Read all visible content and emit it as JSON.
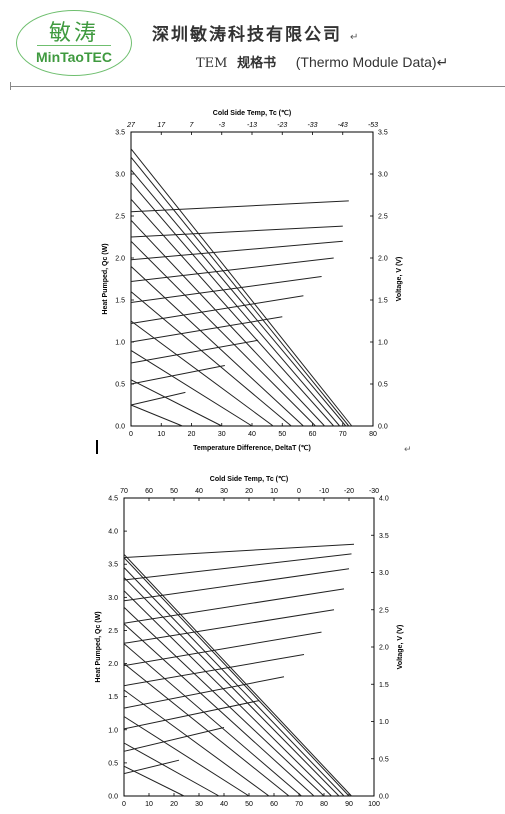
{
  "header": {
    "logo_cn": "敏涛",
    "logo_en": "MinTaoTEC",
    "company_name": "深圳敏涛科技有限公司",
    "paragraph_mark": "↵",
    "spec_tem": "TEM",
    "spec_cn": "规格书",
    "spec_en": "(Thermo Module Data)↵",
    "logo_color": "#3f9a3f"
  },
  "chart_data": [
    {
      "type": "line",
      "title": "",
      "top_axis_label": "Cold Side Temp, Tc (℃)",
      "top_ticks": [
        "27",
        "17",
        "7",
        "-3",
        "-13",
        "-23",
        "-33",
        "-43",
        "-53"
      ],
      "xlabel": "Temperature Difference, DeltaT (℃)",
      "ylabel_left": "Heat Pumped, Qc (W)",
      "ylabel_right": "Voltage, V (V)",
      "xlim": [
        0,
        80
      ],
      "ylim": [
        0,
        3.5
      ],
      "y2lim": [
        0,
        3.5
      ],
      "x_ticks": [
        0,
        10,
        20,
        30,
        40,
        50,
        60,
        70,
        80
      ],
      "y_ticks": [
        0.0,
        0.5,
        1.0,
        1.5,
        2.0,
        2.5,
        3.0,
        3.5
      ],
      "y_tick_labels": [
        "0.0",
        "0.5",
        "1.0",
        "1.5",
        "2.0",
        "2.5",
        "3.0",
        "3.5"
      ],
      "y2_ticks": [
        0.0,
        0.5,
        1.0,
        1.5,
        2.0,
        2.5,
        3.0,
        3.5
      ],
      "y2_tick_labels": [
        "0.0",
        "0.5",
        "1.0",
        "1.5",
        "2.0",
        "2.5",
        "3.0",
        "3.5"
      ],
      "grid": false,
      "series": [
        {
          "axis": "left",
          "x": [
            0,
            73
          ],
          "y": [
            3.3,
            0.0
          ]
        },
        {
          "axis": "left",
          "x": [
            0,
            72
          ],
          "y": [
            3.2,
            0.0
          ]
        },
        {
          "axis": "left",
          "x": [
            0,
            71
          ],
          "y": [
            3.05,
            0.0
          ]
        },
        {
          "axis": "left",
          "x": [
            0,
            69
          ],
          "y": [
            2.9,
            0.0
          ]
        },
        {
          "axis": "left",
          "x": [
            0,
            67
          ],
          "y": [
            2.7,
            0.0
          ]
        },
        {
          "axis": "left",
          "x": [
            0,
            64
          ],
          "y": [
            2.45,
            0.0
          ]
        },
        {
          "axis": "left",
          "x": [
            0,
            61
          ],
          "y": [
            2.2,
            0.0
          ]
        },
        {
          "axis": "left",
          "x": [
            0,
            57
          ],
          "y": [
            1.9,
            0.0
          ]
        },
        {
          "axis": "left",
          "x": [
            0,
            53
          ],
          "y": [
            1.6,
            0.0
          ]
        },
        {
          "axis": "left",
          "x": [
            0,
            47
          ],
          "y": [
            1.25,
            0.0
          ]
        },
        {
          "axis": "left",
          "x": [
            0,
            40
          ],
          "y": [
            0.9,
            0.0
          ]
        },
        {
          "axis": "left",
          "x": [
            0,
            30
          ],
          "y": [
            0.55,
            0.0
          ]
        },
        {
          "axis": "left",
          "x": [
            0,
            17
          ],
          "y": [
            0.25,
            0.0
          ]
        },
        {
          "axis": "right",
          "x": [
            0,
            18
          ],
          "y": [
            0.25,
            0.4
          ]
        },
        {
          "axis": "right",
          "x": [
            0,
            31
          ],
          "y": [
            0.5,
            0.72
          ]
        },
        {
          "axis": "right",
          "x": [
            0,
            42
          ],
          "y": [
            0.75,
            1.02
          ]
        },
        {
          "axis": "right",
          "x": [
            0,
            50
          ],
          "y": [
            1.0,
            1.3
          ]
        },
        {
          "axis": "right",
          "x": [
            0,
            57
          ],
          "y": [
            1.22,
            1.55
          ]
        },
        {
          "axis": "right",
          "x": [
            0,
            63
          ],
          "y": [
            1.47,
            1.78
          ]
        },
        {
          "axis": "right",
          "x": [
            0,
            67
          ],
          "y": [
            1.72,
            2.0
          ]
        },
        {
          "axis": "right",
          "x": [
            0,
            70
          ],
          "y": [
            1.98,
            2.2
          ]
        },
        {
          "axis": "right",
          "x": [
            0,
            70
          ],
          "y": [
            2.25,
            2.38
          ]
        },
        {
          "axis": "right",
          "x": [
            0,
            72
          ],
          "y": [
            2.55,
            2.68
          ]
        }
      ]
    },
    {
      "type": "line",
      "title": "",
      "top_axis_label": "Cold Side Temp, Tc (℃)",
      "top_ticks": [
        "70",
        "60",
        "50",
        "40",
        "30",
        "20",
        "10",
        "0",
        "-10",
        "-20",
        "-30"
      ],
      "xlabel": "",
      "ylabel_left": "Heat Pumped, Qc (W)",
      "ylabel_right": "Voltage, V (V)",
      "xlim": [
        0,
        100
      ],
      "ylim": [
        0,
        4.5
      ],
      "y2lim": [
        0,
        4.0
      ],
      "x_ticks": [
        0,
        10,
        20,
        30,
        40,
        50,
        60,
        70,
        80,
        90,
        100
      ],
      "y_ticks": [
        0.0,
        0.5,
        1.0,
        1.5,
        2.0,
        2.5,
        3.0,
        3.5,
        4.0,
        4.5
      ],
      "y_tick_labels": [
        "0.0",
        "0.5",
        "1.0",
        "1.5",
        "2.0",
        "2.5",
        "3.0",
        "3.5",
        "4.0",
        "4.5"
      ],
      "y2_ticks": [
        0.0,
        0.5,
        1.0,
        1.5,
        2.0,
        2.5,
        3.0,
        3.5,
        4.0
      ],
      "y2_tick_labels": [
        "0.0",
        "0.5",
        "1.0",
        "1.5",
        "2.0",
        "2.5",
        "3.0",
        "3.5",
        "4.0"
      ],
      "grid": false,
      "series": [
        {
          "axis": "left",
          "x": [
            0,
            91
          ],
          "y": [
            3.65,
            0.0
          ]
        },
        {
          "axis": "left",
          "x": [
            0,
            90
          ],
          "y": [
            3.6,
            0.0
          ]
        },
        {
          "axis": "left",
          "x": [
            0,
            88
          ],
          "y": [
            3.45,
            0.0
          ]
        },
        {
          "axis": "left",
          "x": [
            0,
            86
          ],
          "y": [
            3.3,
            0.0
          ]
        },
        {
          "axis": "left",
          "x": [
            0,
            83
          ],
          "y": [
            3.1,
            0.0
          ]
        },
        {
          "axis": "left",
          "x": [
            0,
            80
          ],
          "y": [
            2.85,
            0.0
          ]
        },
        {
          "axis": "left",
          "x": [
            0,
            76
          ],
          "y": [
            2.6,
            0.0
          ]
        },
        {
          "axis": "left",
          "x": [
            0,
            71
          ],
          "y": [
            2.3,
            0.0
          ]
        },
        {
          "axis": "left",
          "x": [
            0,
            66
          ],
          "y": [
            2.0,
            0.0
          ]
        },
        {
          "axis": "left",
          "x": [
            0,
            58
          ],
          "y": [
            1.6,
            0.0
          ]
        },
        {
          "axis": "left",
          "x": [
            0,
            50
          ],
          "y": [
            1.2,
            0.0
          ]
        },
        {
          "axis": "left",
          "x": [
            0,
            38
          ],
          "y": [
            0.8,
            0.0
          ]
        },
        {
          "axis": "left",
          "x": [
            0,
            24
          ],
          "y": [
            0.45,
            0.0
          ]
        },
        {
          "axis": "right",
          "x": [
            0,
            22
          ],
          "y": [
            0.3,
            0.48
          ]
        },
        {
          "axis": "right",
          "x": [
            0,
            40
          ],
          "y": [
            0.6,
            0.92
          ]
        },
        {
          "axis": "right",
          "x": [
            0,
            54
          ],
          "y": [
            0.9,
            1.28
          ]
        },
        {
          "axis": "right",
          "x": [
            0,
            64
          ],
          "y": [
            1.18,
            1.6
          ]
        },
        {
          "axis": "right",
          "x": [
            0,
            72
          ],
          "y": [
            1.48,
            1.9
          ]
        },
        {
          "axis": "right",
          "x": [
            0,
            79
          ],
          "y": [
            1.75,
            2.2
          ]
        },
        {
          "axis": "right",
          "x": [
            0,
            84
          ],
          "y": [
            2.05,
            2.5
          ]
        },
        {
          "axis": "right",
          "x": [
            0,
            88
          ],
          "y": [
            2.32,
            2.78
          ]
        },
        {
          "axis": "right",
          "x": [
            0,
            90
          ],
          "y": [
            2.62,
            3.05
          ]
        },
        {
          "axis": "right",
          "x": [
            0,
            91
          ],
          "y": [
            2.9,
            3.25
          ]
        },
        {
          "axis": "right",
          "x": [
            0,
            92
          ],
          "y": [
            3.2,
            3.38
          ]
        }
      ]
    }
  ]
}
